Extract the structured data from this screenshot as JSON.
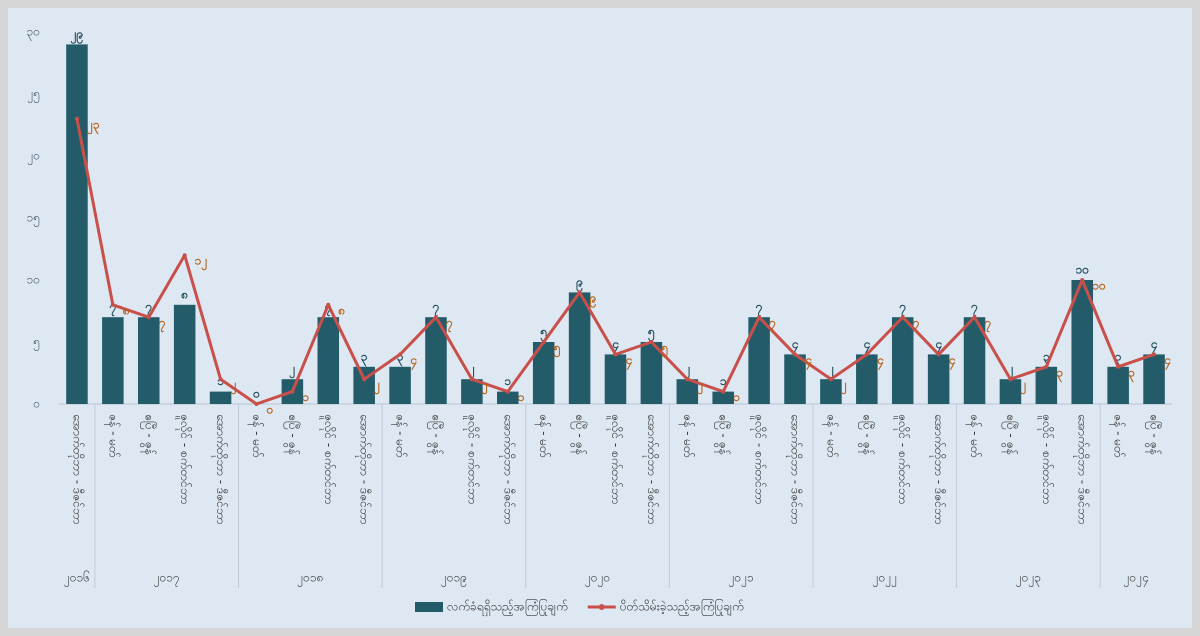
{
  "chart_data": {
    "type": "combo",
    "groups": [
      {
        "name": "၂၀၁၆",
        "categories": [
          "အောက်တိုဘာ - ဒီဇင်ဘာ"
        ]
      },
      {
        "name": "၂၀၁၇",
        "categories": [
          "ဇန် - မတ်",
          "ဧပြီ - ဇွန်",
          "ဇူလိုင် - စက်တင်ဘာ",
          "အောက်တိုဘာ - ဒီဇင်ဘာ"
        ]
      },
      {
        "name": "၂၀၁၈",
        "categories": [
          "ဇန် - မတ်",
          "ဧပြီ - ဇွန်",
          "ဇူလိုင် - စက်တင်ဘာ",
          "အောက်တိုဘာ - ဒီဇင်ဘာ"
        ]
      },
      {
        "name": "၂၀၁၉",
        "categories": [
          "ဇန် - မတ်",
          "ဧပြီ - ဇွန်",
          "ဇူလိုင် - စက်တင်ဘာ",
          "အောက်တိုဘာ - ဒီဇင်ဘာ"
        ]
      },
      {
        "name": "၂၀၂၀",
        "categories": [
          "ဇန် - မတ်",
          "ဧပြီ - ဇွန်",
          "ဇူလိုင် - စက်တင်ဘာ",
          "အောက်တိုဘာ - ဒီဇင်ဘာ"
        ]
      },
      {
        "name": "၂၀၂၁",
        "categories": [
          "ဇန် - မတ်",
          "ဧပြီ - ဇွန်",
          "ဇူလိုင် - စက်တင်ဘာ",
          "အောက်တိုဘာ - ဒီဇင်ဘာ"
        ]
      },
      {
        "name": "၂၀၂၂",
        "categories": [
          "ဇန် - မတ်",
          "ဧပြီ - ဇွန်",
          "ဇူလိုင် - စက်တင်ဘာ",
          "အောက်တိုဘာ - ဒီဇင်ဘာ"
        ]
      },
      {
        "name": "၂၀၂၃",
        "categories": [
          "ဇန် - မတ်",
          "ဧပြီ - ဇွန်",
          "ဇူလိုင် - စက်တင်ဘာ",
          "အောက်တိုဘာ - ဒီဇင်ဘာ"
        ]
      },
      {
        "name": "၂၀၂၄",
        "categories": [
          "ဇန် - မတ်",
          "ဧပြီ - ဇွန်"
        ]
      }
    ],
    "series": [
      {
        "name": "လက်ခံရရှိသည့်အကြံပြုချက်",
        "type": "bar",
        "color": "#245b69",
        "label_color": "#1f4e5a",
        "values": [
          29,
          7,
          7,
          8,
          1,
          0,
          2,
          7,
          3,
          3,
          7,
          2,
          1,
          5,
          9,
          4,
          5,
          2,
          1,
          7,
          4,
          2,
          4,
          7,
          4,
          7,
          2,
          3,
          10,
          3,
          4
        ],
        "value_labels": [
          "၂၉",
          "၇",
          "၇",
          "၈",
          "၁",
          "၀",
          "၂",
          "၇",
          "၃",
          "၃",
          "၇",
          "၂",
          "၁",
          "၅",
          "၉",
          "၄",
          "၅",
          "၂",
          "၁",
          "၇",
          "၄",
          "၂",
          "၄",
          "၇",
          "၄",
          "၇",
          "၂",
          "၃",
          "၁၀",
          "၃",
          "၄"
        ]
      },
      {
        "name": "ပိတ်သိမ်းခဲ့သည့်အကြံပြုချက်",
        "type": "line",
        "color": "#c9504a",
        "label_color": "#b5651d",
        "values": [
          23,
          8,
          7,
          12,
          2,
          0,
          1,
          8,
          2,
          4,
          7,
          2,
          1,
          5,
          9,
          4,
          5,
          2,
          1,
          7,
          4,
          2,
          4,
          7,
          4,
          7,
          2,
          3,
          10,
          3,
          4
        ],
        "value_labels": [
          "၂၃",
          "၈",
          "၇",
          "၁၂",
          "၂",
          "၀",
          "၁",
          "၈",
          "၂",
          "၄",
          "၇",
          "၂",
          "၁",
          "၅",
          "၉",
          "၄",
          "၅",
          "၂",
          "၁",
          "၇",
          "၄",
          "၂",
          "၄",
          "၇",
          "၄",
          "၇",
          "၂",
          "၃",
          "၁၀",
          "၃",
          "၄"
        ]
      }
    ],
    "ylim": [
      0,
      30
    ],
    "yticks": [
      {
        "value": 0,
        "label": "၀"
      },
      {
        "value": 5,
        "label": "၅"
      },
      {
        "value": 10,
        "label": "၁၀"
      },
      {
        "value": 15,
        "label": "၁၅"
      },
      {
        "value": 20,
        "label": "၂၀"
      },
      {
        "value": 25,
        "label": "၂၅"
      },
      {
        "value": 30,
        "label": "၃၀"
      }
    ],
    "grid": false,
    "legend": "bottom"
  }
}
